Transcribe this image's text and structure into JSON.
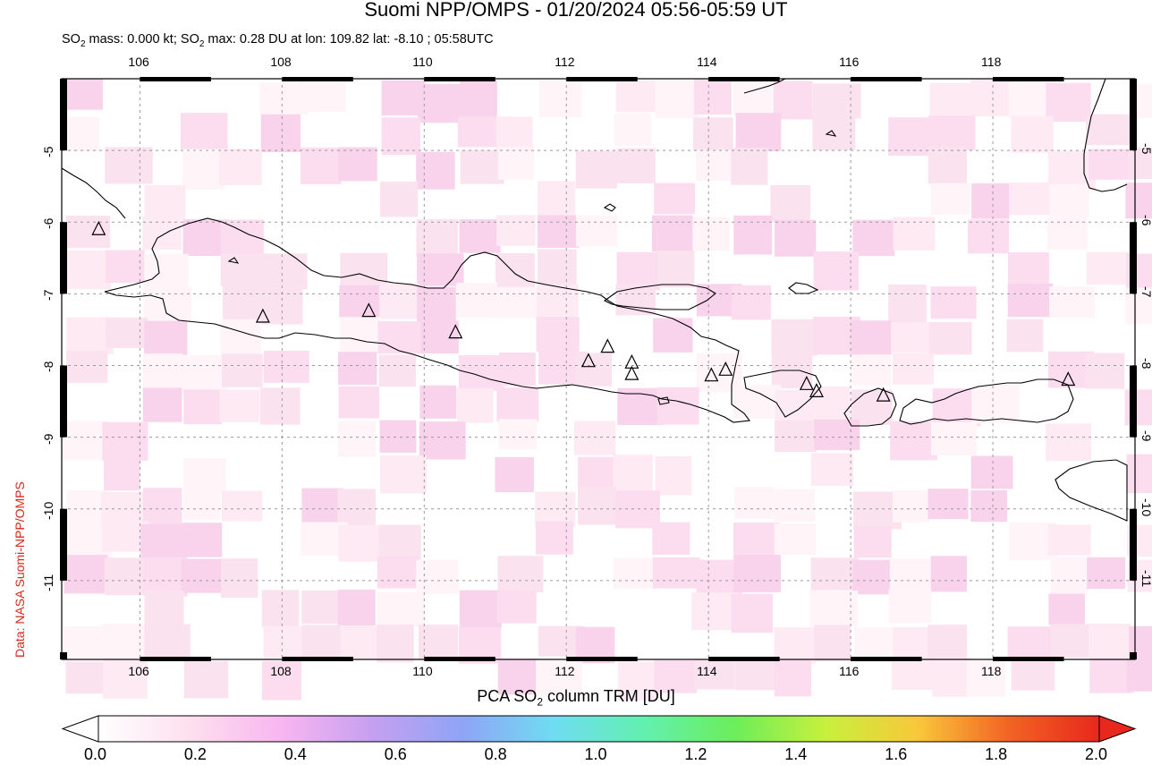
{
  "header": {
    "title": "Suomi NPP/OMPS - 01/20/2024 05:56-05:59 UT",
    "subtitle_pre": "SO",
    "subtitle_mid": " mass: 0.000 kt; SO",
    "subtitle_post": " max: 0.28 DU at lon: 109.82 lat: -8.10 ; 05:58UTC"
  },
  "credit": "Data: NASA Suomi-NPP/OMPS",
  "map": {
    "lon_range": [
      104.9,
      120.0
    ],
    "lat_range": [
      -12.1,
      -4.0
    ],
    "lon_ticks": [
      "106",
      "108",
      "110",
      "112",
      "114",
      "116",
      "118"
    ],
    "lat_ticks": [
      "-5",
      "-6",
      "-7",
      "-8",
      "-9",
      "-10",
      "-11"
    ],
    "grid": "dashed gray",
    "volcanoes_marker": "triangle",
    "coastline_color": "#000000"
  },
  "colorbar": {
    "title_pre": "PCA SO",
    "title_post": " column TRM [DU]",
    "ticks": [
      "0.0",
      "0.2",
      "0.4",
      "0.6",
      "0.8",
      "1.0",
      "1.2",
      "1.4",
      "1.6",
      "1.8",
      "2.0"
    ],
    "colors": [
      "#ffffff",
      "#fde0ee",
      "#f8b6f0",
      "#c6a0f0",
      "#8fa4f6",
      "#6fdcf2",
      "#62f0b0",
      "#6cee5a",
      "#c8f03c",
      "#f8c83a",
      "#f26424",
      "#e8281c"
    ]
  }
}
